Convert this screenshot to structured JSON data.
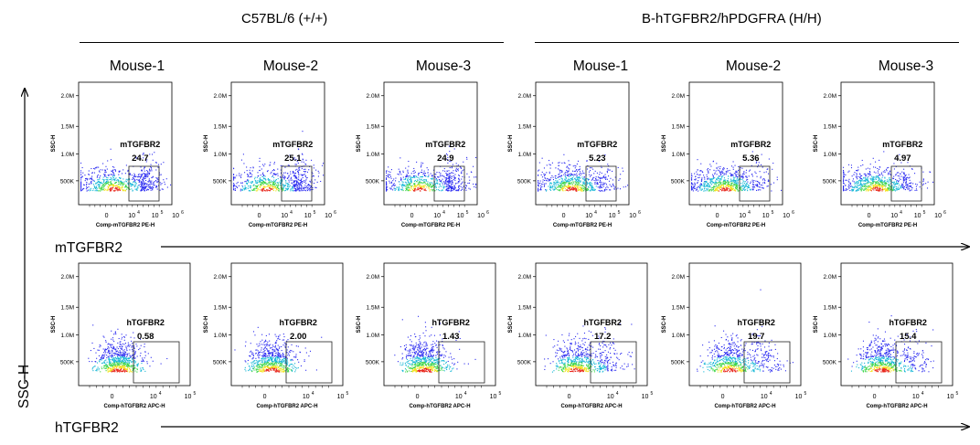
{
  "groups": [
    {
      "label": "C57BL/6 (+/+)"
    },
    {
      "label": "B-hTGFBR2/hPDGFRA (H/H)"
    }
  ],
  "mouse_labels": [
    "Mouse-1",
    "Mouse-2",
    "Mouse-3",
    "Mouse-1",
    "Mouse-2",
    "Mouse-3"
  ],
  "axes": {
    "y_arrow_label": "SSC-H",
    "row1_arrow_label": "mTGFBR2",
    "row2_arrow_label": "hTGFBR2"
  },
  "colors": {
    "dots_sparse": "#2a2af0",
    "dots_mid": "#16b7d6",
    "dots_core_1": "#3ed54a",
    "dots_core_2": "#f2e21c",
    "dots_hot": "#e8281e",
    "frame": "#000000",
    "gate": "#222222"
  },
  "chart_data": [
    {
      "type": "scatter",
      "row": "mTGFBR2",
      "ylabel": "SSC-H",
      "xlabel": "Comp-mTGFBR2 PE-H",
      "yticks": [
        "500K",
        "1.0M",
        "1.5M",
        "2.0M"
      ],
      "xticks": [
        "0",
        "10",
        "10",
        "10"
      ],
      "xtick_exponents": [
        "",
        "4",
        "5",
        "6"
      ],
      "panels": [
        {
          "group": "C57BL/6 (+/+)",
          "mouse": "Mouse-1",
          "gate_label": "mTGFBR2",
          "value": "24.7"
        },
        {
          "group": "C57BL/6 (+/+)",
          "mouse": "Mouse-2",
          "gate_label": "mTGFBR2",
          "value": "25.1"
        },
        {
          "group": "C57BL/6 (+/+)",
          "mouse": "Mouse-3",
          "gate_label": "mTGFBR2",
          "value": "24.9"
        },
        {
          "group": "B-hTGFBR2/hPDGFRA (H/H)",
          "mouse": "Mouse-1",
          "gate_label": "mTGFBR2",
          "value": "5.23"
        },
        {
          "group": "B-hTGFBR2/hPDGFRA (H/H)",
          "mouse": "Mouse-2",
          "gate_label": "mTGFBR2",
          "value": "5.36"
        },
        {
          "group": "B-hTGFBR2/hPDGFRA (H/H)",
          "mouse": "Mouse-3",
          "gate_label": "mTGFBR2",
          "value": "4.97"
        }
      ]
    },
    {
      "type": "scatter",
      "row": "hTGFBR2",
      "ylabel": "SSC-H",
      "xlabel": "Comp-hTGFBR2 APC-H",
      "yticks": [
        "500K",
        "1.0M",
        "1.5M",
        "2.0M"
      ],
      "xticks": [
        "0",
        "10",
        "10"
      ],
      "xtick_exponents": [
        "",
        "4",
        "5"
      ],
      "panels": [
        {
          "group": "C57BL/6 (+/+)",
          "mouse": "Mouse-1",
          "gate_label": "hTGFBR2",
          "value": "0.58"
        },
        {
          "group": "C57BL/6 (+/+)",
          "mouse": "Mouse-2",
          "gate_label": "hTGFBR2",
          "value": "2.00"
        },
        {
          "group": "C57BL/6 (+/+)",
          "mouse": "Mouse-3",
          "gate_label": "hTGFBR2",
          "value": "1.43"
        },
        {
          "group": "B-hTGFBR2/hPDGFRA (H/H)",
          "mouse": "Mouse-1",
          "gate_label": "hTGFBR2",
          "value": "17.2"
        },
        {
          "group": "B-hTGFBR2/hPDGFRA (H/H)",
          "mouse": "Mouse-2",
          "gate_label": "hTGFBR2",
          "value": "19.7"
        },
        {
          "group": "B-hTGFBR2/hPDGFRA (H/H)",
          "mouse": "Mouse-3",
          "gate_label": "hTGFBR2",
          "value": "15.4"
        }
      ]
    }
  ]
}
